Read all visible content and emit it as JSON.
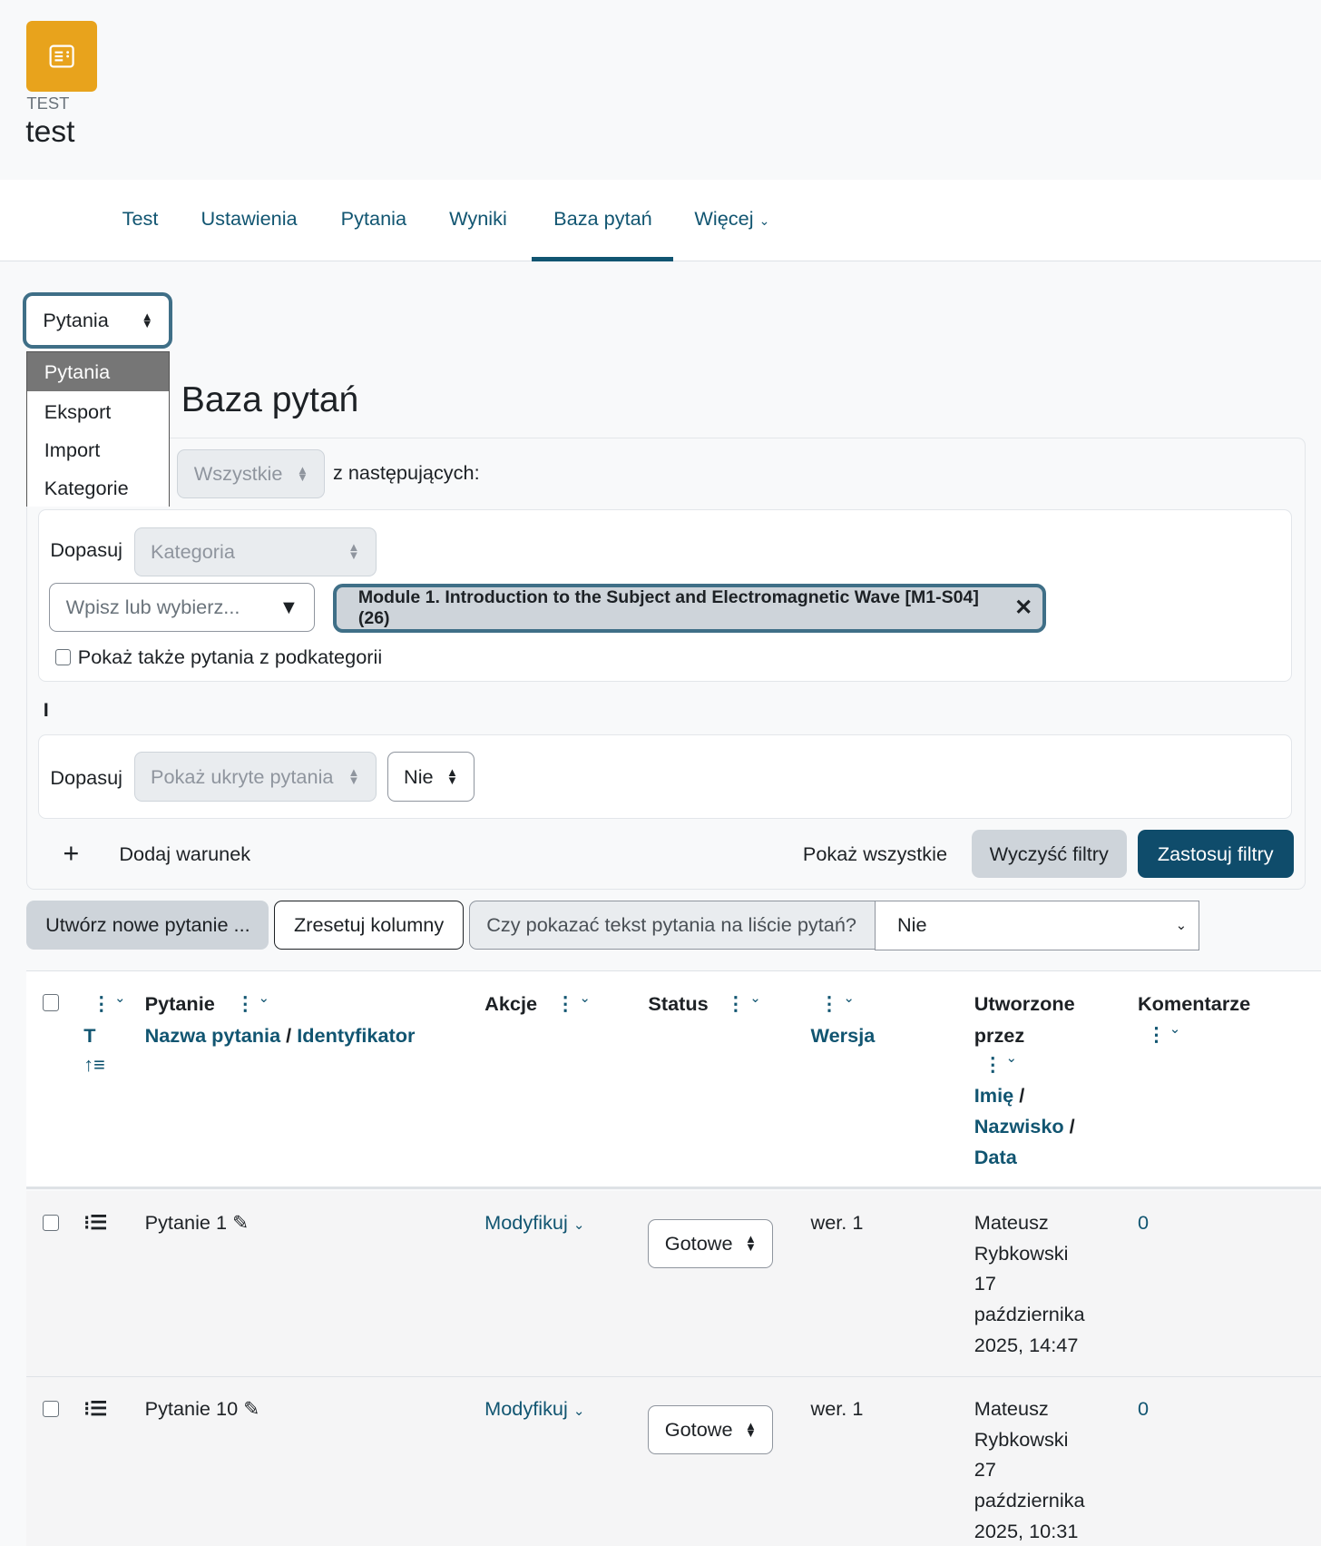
{
  "header": {
    "module_type": "TEST",
    "title": "test",
    "icon": "quiz-icon",
    "accent": "#e8a31c"
  },
  "nav": {
    "tabs": [
      "Test",
      "Ustawienia",
      "Pytania",
      "Wyniki",
      "Baza pytań",
      "Więcej"
    ],
    "active": "Baza pytań"
  },
  "page": {
    "heading": "Baza pytań"
  },
  "nav_select": {
    "value": "Pytania",
    "options": [
      "Pytania",
      "Eksport",
      "Import",
      "Kategorie"
    ]
  },
  "filters": {
    "match_all_value": "Wszystkie",
    "match_all_suffix": "z następujących:",
    "match_label": "Dopasuj",
    "category_select": "Kategoria",
    "category_input_placeholder": "Wpisz lub wybierz...",
    "category_chip": "Module 1. Introduction to the Subject and Electromagnetic Wave [M1-S04] (26)",
    "subcategory_checkbox": "Pokaż także pytania z podkategorii",
    "joiner": "I",
    "hidden_select": "Pokaż ukryte pytania",
    "hidden_value": "Nie",
    "add_condition": "Dodaj warunek",
    "show_all": "Pokaż wszystkie",
    "clear": "Wyczyść filtry",
    "apply": "Zastosuj filtry"
  },
  "toolbar": {
    "create": "Utwórz nowe pytanie ...",
    "reset_columns": "Zresetuj kolumny",
    "show_text_label": "Czy pokazać tekst pytania na liście pytań?",
    "show_text_value": "Nie"
  },
  "table": {
    "headers": {
      "type_sort": "T",
      "question": "Pytanie",
      "question_sort": "Nazwa pytania",
      "question_sort2": "Identyfikator",
      "actions": "Akcje",
      "status": "Status",
      "version": "Wersja",
      "created_line1": "Utworzone",
      "created_line2": "przez",
      "created_first": "Imię",
      "created_last": "Nazwisko",
      "created_date": "Data",
      "comments": "Komentarze"
    },
    "rows": [
      {
        "name": "Pytanie 1",
        "action": "Modyfikuj",
        "status": "Gotowe",
        "version": "wer. 1",
        "author_first": "Mateusz",
        "author_last": "Rybkowski",
        "date1": "17",
        "date2": "października",
        "date3": "2025, 14:47",
        "comments": "0"
      },
      {
        "name": "Pytanie 10",
        "action": "Modyfikuj",
        "status": "Gotowe",
        "version": "wer. 1",
        "author_first": "Mateusz",
        "author_last": "Rybkowski",
        "date1": "27",
        "date2": "października",
        "date3": "2025, 10:31",
        "comments": "0"
      }
    ]
  }
}
